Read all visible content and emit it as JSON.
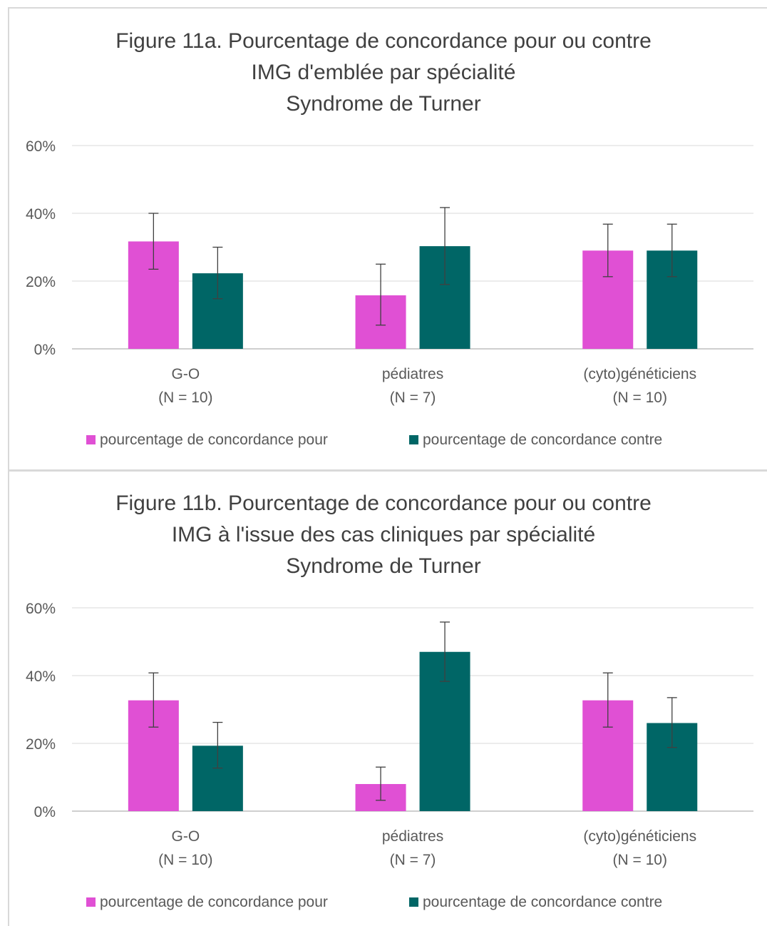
{
  "chart_data": [
    {
      "type": "bar",
      "title_lines": [
        "Figure 11a. Pourcentage de concordance pour ou contre",
        "IMG d'emblée par spécialité",
        "Syndrome de Turner"
      ],
      "categories": [
        {
          "name": "G-O",
          "n": "(N = 10)"
        },
        {
          "name": "pédiatres",
          "n": "(N = 7)"
        },
        {
          "name": "(cyto)généticiens",
          "n": "(N = 10)"
        }
      ],
      "series": [
        {
          "name": "pourcentage de concordance pour",
          "color": "#e050d4",
          "values": [
            31.7,
            15.8,
            29.0
          ],
          "err_low": [
            23.5,
            7.0,
            21.3
          ],
          "err_high": [
            40.0,
            25.0,
            36.8
          ]
        },
        {
          "name": "pourcentage de concordance contre",
          "color": "#006666",
          "values": [
            22.3,
            30.3,
            29.0
          ],
          "err_low": [
            14.8,
            19.0,
            21.3
          ],
          "err_high": [
            30.0,
            41.7,
            36.8
          ]
        }
      ],
      "ylim": [
        0,
        60
      ],
      "yticks": [
        "0%",
        "20%",
        "40%",
        "60%"
      ],
      "grid": true,
      "legend_position": "bottom"
    },
    {
      "type": "bar",
      "title_lines": [
        "Figure 11b. Pourcentage de concordance pour ou contre",
        "IMG à l'issue des cas cliniques par spécialité",
        "Syndrome de Turner"
      ],
      "categories": [
        {
          "name": "G-O",
          "n": "(N = 10)"
        },
        {
          "name": "pédiatres",
          "n": "(N = 7)"
        },
        {
          "name": "(cyto)généticiens",
          "n": "(N = 10)"
        }
      ],
      "series": [
        {
          "name": "pourcentage de concordance pour",
          "color": "#e050d4",
          "values": [
            32.7,
            8.0,
            32.7
          ],
          "err_low": [
            24.8,
            3.2,
            24.8
          ],
          "err_high": [
            40.8,
            13.0,
            40.8
          ]
        },
        {
          "name": "pourcentage de concordance contre",
          "color": "#006666",
          "values": [
            19.3,
            47.0,
            26.0
          ],
          "err_low": [
            12.7,
            38.3,
            18.8
          ],
          "err_high": [
            26.2,
            55.8,
            33.5
          ]
        }
      ],
      "ylim": [
        0,
        60
      ],
      "yticks": [
        "0%",
        "20%",
        "40%",
        "60%"
      ],
      "grid": true,
      "legend_position": "bottom"
    }
  ]
}
